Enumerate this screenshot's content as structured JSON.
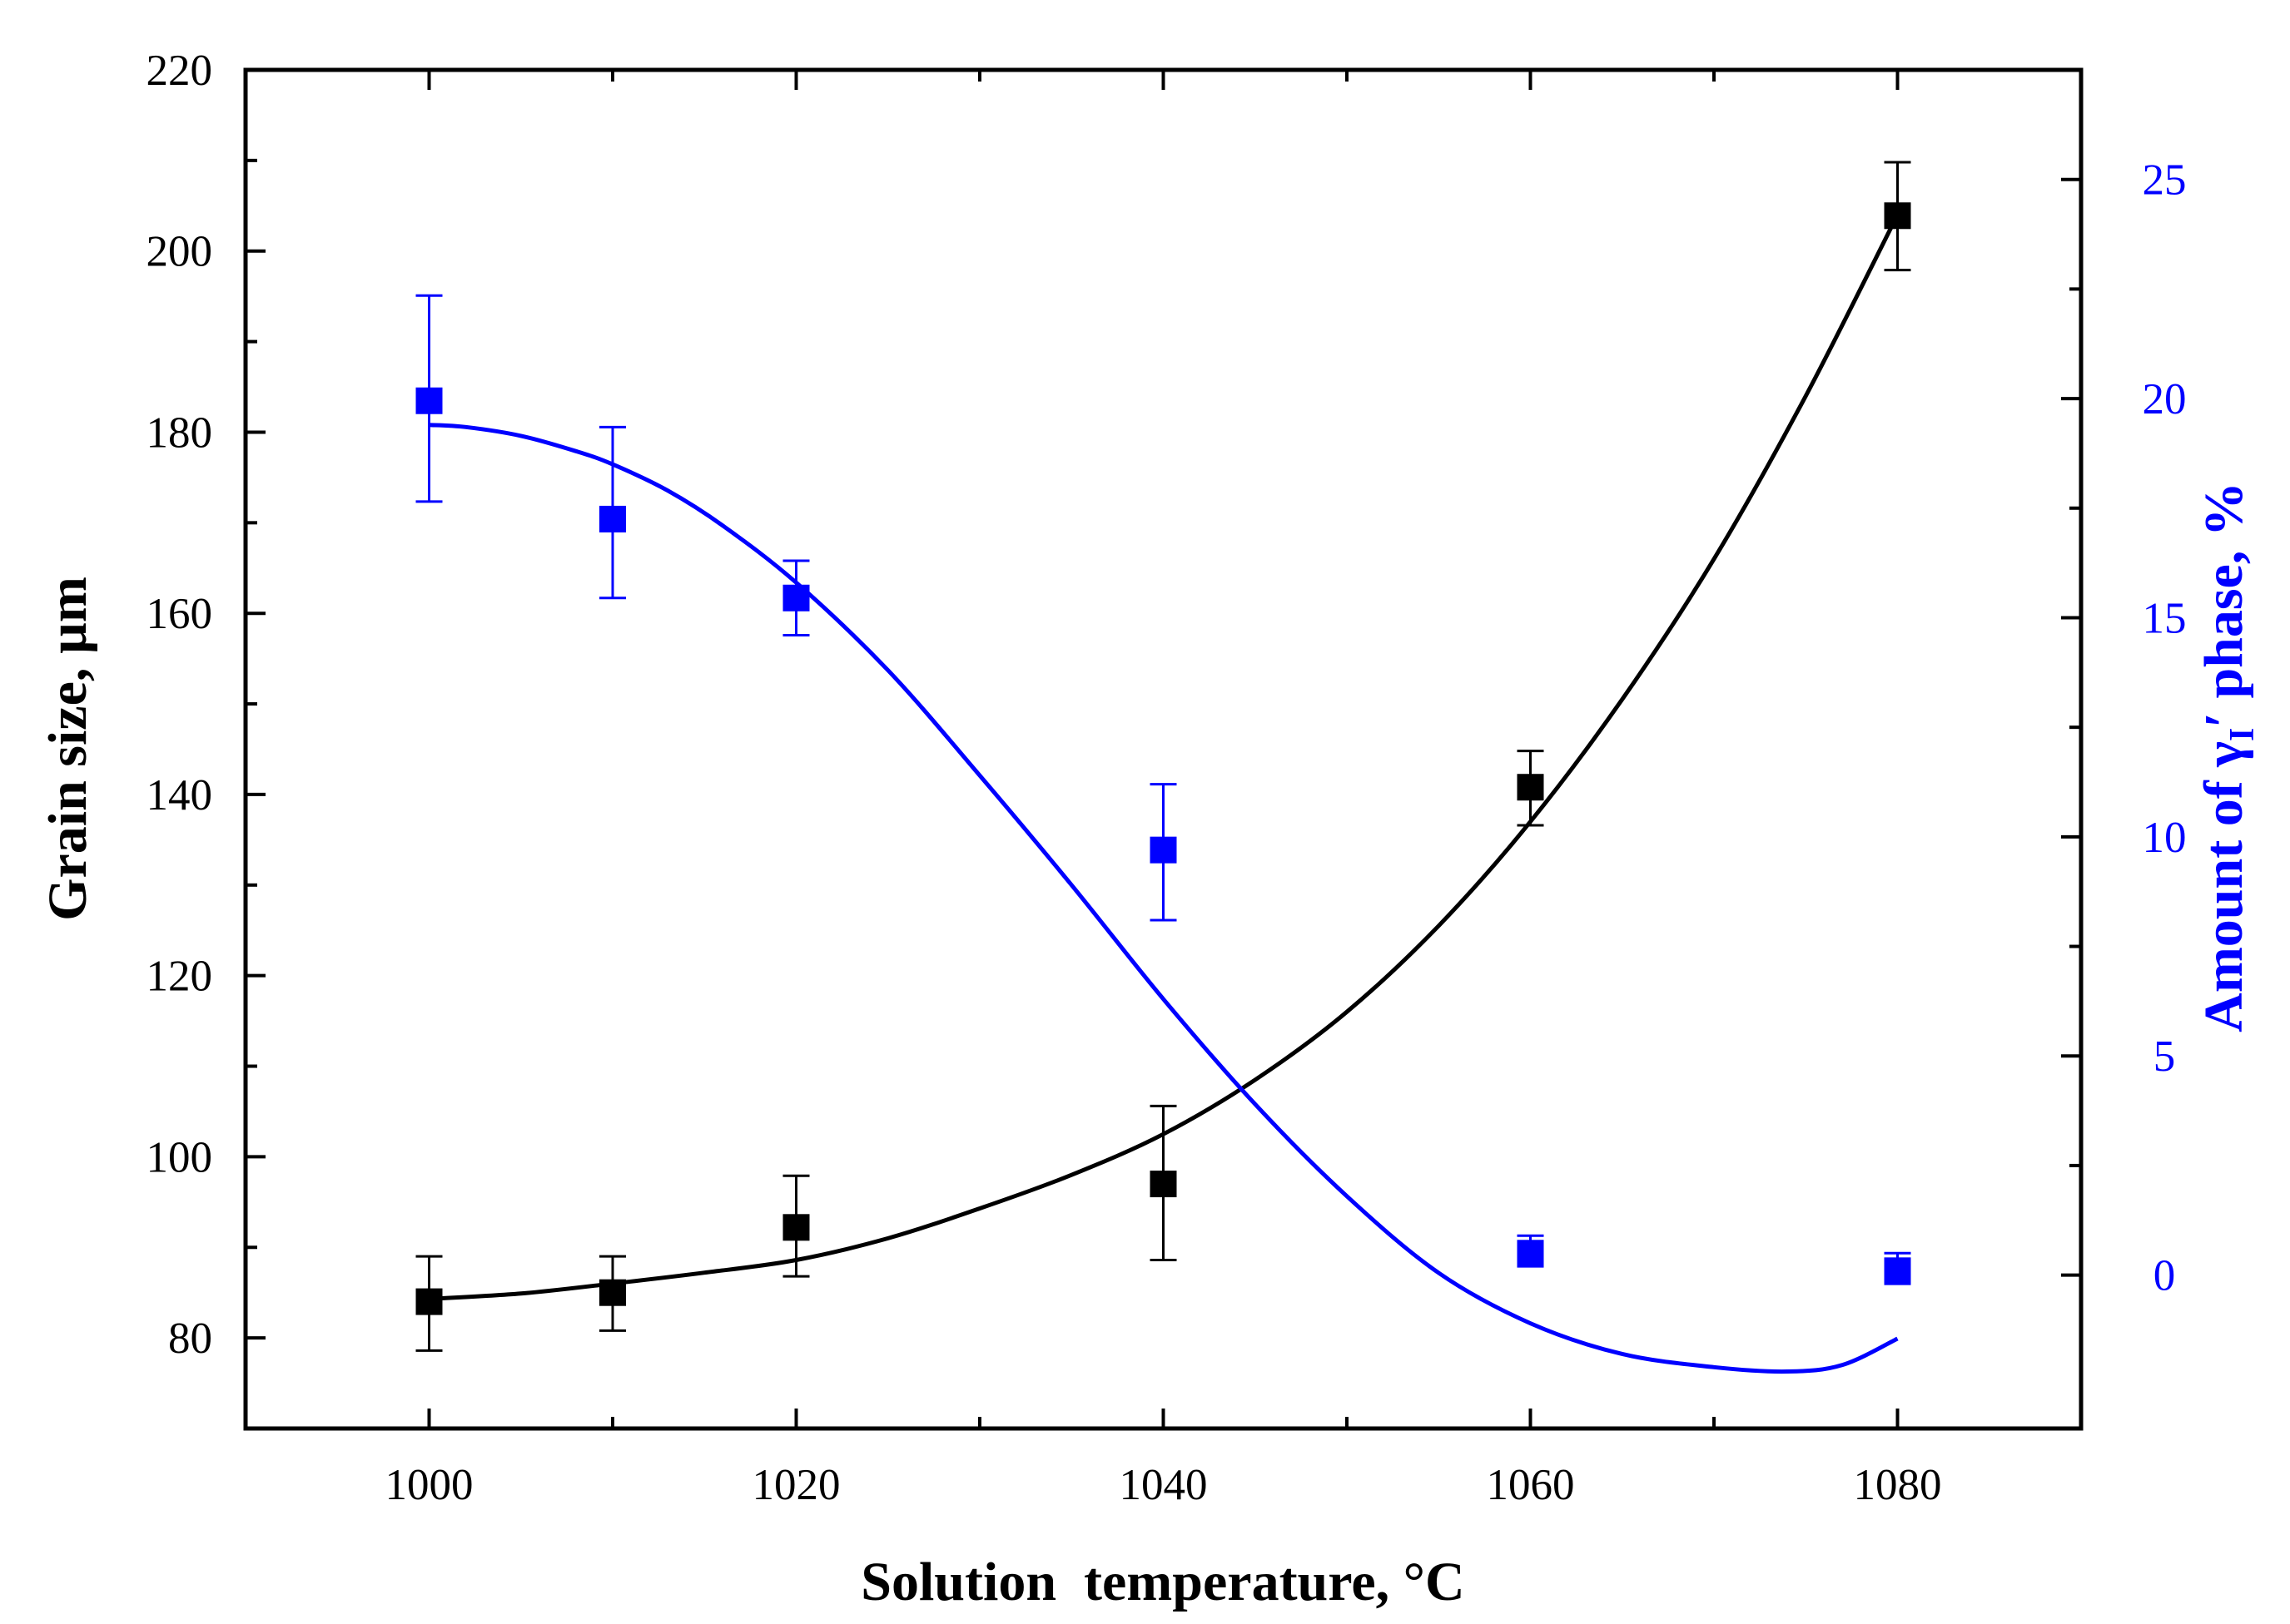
{
  "chart_data": {
    "type": "scatter",
    "title": "",
    "xlabel": "Solution  temperature, °C",
    "ylabel_left": "Grain size, µm",
    "ylabel_right": {
      "prefix": "Amount of ",
      "symbol": "γ",
      "subscript": "I",
      "prime": "′",
      "suffix": " phase, %",
      "full": "Amount of γI′ phase, %"
    },
    "xlim": [
      990,
      1090
    ],
    "ylim_left": [
      70,
      220
    ],
    "ylim_right": [
      -3.5,
      27.5
    ],
    "x_ticks": [
      1000,
      1020,
      1040,
      1060,
      1080
    ],
    "x_minor_ticks": [
      990,
      1010,
      1030,
      1050,
      1070,
      1090
    ],
    "y_left_ticks": [
      80,
      100,
      120,
      140,
      160,
      180,
      200,
      220
    ],
    "y_left_minor_ticks": [
      90,
      110,
      130,
      150,
      170,
      190,
      210
    ],
    "y_right_ticks": [
      0,
      5,
      10,
      15,
      20,
      25
    ],
    "y_right_minor_ticks": [
      2.5,
      7.5,
      12.5,
      17.5,
      22.5
    ],
    "grid": false,
    "legend": "none",
    "colors": {
      "grain": "#000000",
      "gamma": "#0000ff",
      "axes": "#000000"
    },
    "series": [
      {
        "name": "Grain size",
        "axis": "left",
        "color": "#000000",
        "marker": "square",
        "x": [
          1000,
          1010,
          1020,
          1040,
          1060,
          1080
        ],
        "y": [
          84,
          85,
          92.2,
          97,
          140.8,
          203.9
        ],
        "err_low": [
          5.4,
          4.2,
          5.4,
          8.4,
          4.2,
          6
        ],
        "err_high": [
          5,
          4,
          5.7,
          8.6,
          4,
          5.9
        ],
        "fit": {
          "x": [
            1000,
            1005,
            1010,
            1015,
            1020,
            1025,
            1030,
            1035,
            1040,
            1045,
            1050,
            1055,
            1060,
            1065,
            1070,
            1075,
            1080
          ],
          "y": [
            84.3,
            84.9,
            86,
            87.2,
            88.6,
            91,
            94.3,
            98,
            102.5,
            108.5,
            116,
            125.5,
            137,
            150.5,
            166,
            184,
            204
          ]
        }
      },
      {
        "name": "Amount of γI′ phase",
        "axis": "right",
        "color": "#0000ff",
        "marker": "square",
        "x": [
          1000,
          1010,
          1020,
          1040,
          1060,
          1080
        ],
        "y": [
          19.95,
          17.25,
          15.45,
          9.7,
          0.5,
          0.1
        ],
        "err_low": [
          2.3,
          1.8,
          0.85,
          1.6,
          0.3,
          0.3
        ],
        "err_high": [
          2.4,
          2.1,
          0.85,
          1.5,
          0.4,
          0.4
        ],
        "fit": {
          "x": [
            1000,
            1002,
            1005,
            1008,
            1010,
            1013,
            1016,
            1020,
            1025,
            1030,
            1035,
            1040,
            1045,
            1050,
            1055,
            1060,
            1065,
            1070,
            1074,
            1077,
            1080
          ],
          "y": [
            19.4,
            19.35,
            19.15,
            18.8,
            18.5,
            17.9,
            17.1,
            15.8,
            13.8,
            11.4,
            8.9,
            6.3,
            3.9,
            1.8,
            0.05,
            -1.1,
            -1.8,
            -2.1,
            -2.2,
            -2.05,
            -1.45
          ]
        }
      }
    ]
  }
}
